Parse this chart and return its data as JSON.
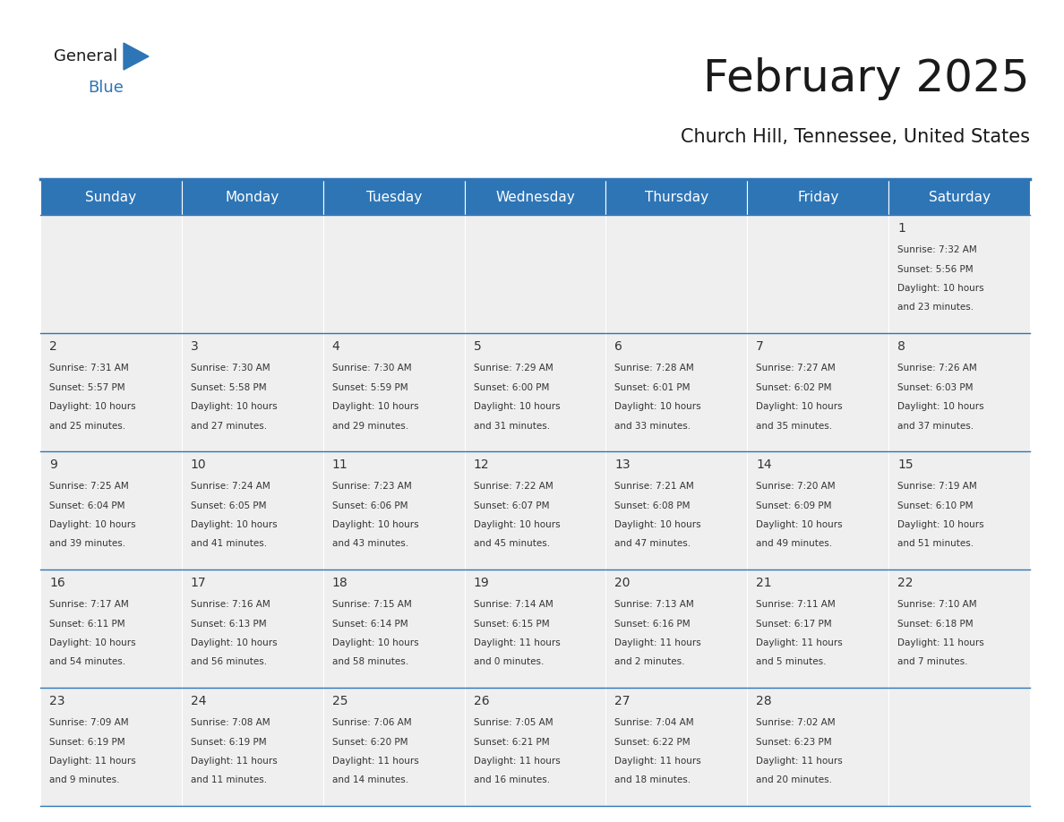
{
  "title": "February 2025",
  "subtitle": "Church Hill, Tennessee, United States",
  "header_color": "#2e75b6",
  "header_text_color": "#ffffff",
  "cell_bg_color": "#efefef",
  "border_color": "#2e75b6",
  "text_color": "#333333",
  "day_headers": [
    "Sunday",
    "Monday",
    "Tuesday",
    "Wednesday",
    "Thursday",
    "Friday",
    "Saturday"
  ],
  "title_color": "#1a1a1a",
  "subtitle_color": "#1a1a1a",
  "logo_general_color": "#1a1a1a",
  "logo_blue_color": "#2e75b6",
  "title_fontsize": 36,
  "subtitle_fontsize": 15,
  "header_fontsize": 11,
  "day_num_fontsize": 10,
  "info_fontsize": 7.5,
  "days": [
    {
      "day": 1,
      "col": 6,
      "row": 0,
      "sunrise": "7:32 AM",
      "sunset": "5:56 PM",
      "daylight_line1": "Daylight: 10 hours",
      "daylight_line2": "and 23 minutes."
    },
    {
      "day": 2,
      "col": 0,
      "row": 1,
      "sunrise": "7:31 AM",
      "sunset": "5:57 PM",
      "daylight_line1": "Daylight: 10 hours",
      "daylight_line2": "and 25 minutes."
    },
    {
      "day": 3,
      "col": 1,
      "row": 1,
      "sunrise": "7:30 AM",
      "sunset": "5:58 PM",
      "daylight_line1": "Daylight: 10 hours",
      "daylight_line2": "and 27 minutes."
    },
    {
      "day": 4,
      "col": 2,
      "row": 1,
      "sunrise": "7:30 AM",
      "sunset": "5:59 PM",
      "daylight_line1": "Daylight: 10 hours",
      "daylight_line2": "and 29 minutes."
    },
    {
      "day": 5,
      "col": 3,
      "row": 1,
      "sunrise": "7:29 AM",
      "sunset": "6:00 PM",
      "daylight_line1": "Daylight: 10 hours",
      "daylight_line2": "and 31 minutes."
    },
    {
      "day": 6,
      "col": 4,
      "row": 1,
      "sunrise": "7:28 AM",
      "sunset": "6:01 PM",
      "daylight_line1": "Daylight: 10 hours",
      "daylight_line2": "and 33 minutes."
    },
    {
      "day": 7,
      "col": 5,
      "row": 1,
      "sunrise": "7:27 AM",
      "sunset": "6:02 PM",
      "daylight_line1": "Daylight: 10 hours",
      "daylight_line2": "and 35 minutes."
    },
    {
      "day": 8,
      "col": 6,
      "row": 1,
      "sunrise": "7:26 AM",
      "sunset": "6:03 PM",
      "daylight_line1": "Daylight: 10 hours",
      "daylight_line2": "and 37 minutes."
    },
    {
      "day": 9,
      "col": 0,
      "row": 2,
      "sunrise": "7:25 AM",
      "sunset": "6:04 PM",
      "daylight_line1": "Daylight: 10 hours",
      "daylight_line2": "and 39 minutes."
    },
    {
      "day": 10,
      "col": 1,
      "row": 2,
      "sunrise": "7:24 AM",
      "sunset": "6:05 PM",
      "daylight_line1": "Daylight: 10 hours",
      "daylight_line2": "and 41 minutes."
    },
    {
      "day": 11,
      "col": 2,
      "row": 2,
      "sunrise": "7:23 AM",
      "sunset": "6:06 PM",
      "daylight_line1": "Daylight: 10 hours",
      "daylight_line2": "and 43 minutes."
    },
    {
      "day": 12,
      "col": 3,
      "row": 2,
      "sunrise": "7:22 AM",
      "sunset": "6:07 PM",
      "daylight_line1": "Daylight: 10 hours",
      "daylight_line2": "and 45 minutes."
    },
    {
      "day": 13,
      "col": 4,
      "row": 2,
      "sunrise": "7:21 AM",
      "sunset": "6:08 PM",
      "daylight_line1": "Daylight: 10 hours",
      "daylight_line2": "and 47 minutes."
    },
    {
      "day": 14,
      "col": 5,
      "row": 2,
      "sunrise": "7:20 AM",
      "sunset": "6:09 PM",
      "daylight_line1": "Daylight: 10 hours",
      "daylight_line2": "and 49 minutes."
    },
    {
      "day": 15,
      "col": 6,
      "row": 2,
      "sunrise": "7:19 AM",
      "sunset": "6:10 PM",
      "daylight_line1": "Daylight: 10 hours",
      "daylight_line2": "and 51 minutes."
    },
    {
      "day": 16,
      "col": 0,
      "row": 3,
      "sunrise": "7:17 AM",
      "sunset": "6:11 PM",
      "daylight_line1": "Daylight: 10 hours",
      "daylight_line2": "and 54 minutes."
    },
    {
      "day": 17,
      "col": 1,
      "row": 3,
      "sunrise": "7:16 AM",
      "sunset": "6:13 PM",
      "daylight_line1": "Daylight: 10 hours",
      "daylight_line2": "and 56 minutes."
    },
    {
      "day": 18,
      "col": 2,
      "row": 3,
      "sunrise": "7:15 AM",
      "sunset": "6:14 PM",
      "daylight_line1": "Daylight: 10 hours",
      "daylight_line2": "and 58 minutes."
    },
    {
      "day": 19,
      "col": 3,
      "row": 3,
      "sunrise": "7:14 AM",
      "sunset": "6:15 PM",
      "daylight_line1": "Daylight: 11 hours",
      "daylight_line2": "and 0 minutes."
    },
    {
      "day": 20,
      "col": 4,
      "row": 3,
      "sunrise": "7:13 AM",
      "sunset": "6:16 PM",
      "daylight_line1": "Daylight: 11 hours",
      "daylight_line2": "and 2 minutes."
    },
    {
      "day": 21,
      "col": 5,
      "row": 3,
      "sunrise": "7:11 AM",
      "sunset": "6:17 PM",
      "daylight_line1": "Daylight: 11 hours",
      "daylight_line2": "and 5 minutes."
    },
    {
      "day": 22,
      "col": 6,
      "row": 3,
      "sunrise": "7:10 AM",
      "sunset": "6:18 PM",
      "daylight_line1": "Daylight: 11 hours",
      "daylight_line2": "and 7 minutes."
    },
    {
      "day": 23,
      "col": 0,
      "row": 4,
      "sunrise": "7:09 AM",
      "sunset": "6:19 PM",
      "daylight_line1": "Daylight: 11 hours",
      "daylight_line2": "and 9 minutes."
    },
    {
      "day": 24,
      "col": 1,
      "row": 4,
      "sunrise": "7:08 AM",
      "sunset": "6:19 PM",
      "daylight_line1": "Daylight: 11 hours",
      "daylight_line2": "and 11 minutes."
    },
    {
      "day": 25,
      "col": 2,
      "row": 4,
      "sunrise": "7:06 AM",
      "sunset": "6:20 PM",
      "daylight_line1": "Daylight: 11 hours",
      "daylight_line2": "and 14 minutes."
    },
    {
      "day": 26,
      "col": 3,
      "row": 4,
      "sunrise": "7:05 AM",
      "sunset": "6:21 PM",
      "daylight_line1": "Daylight: 11 hours",
      "daylight_line2": "and 16 minutes."
    },
    {
      "day": 27,
      "col": 4,
      "row": 4,
      "sunrise": "7:04 AM",
      "sunset": "6:22 PM",
      "daylight_line1": "Daylight: 11 hours",
      "daylight_line2": "and 18 minutes."
    },
    {
      "day": 28,
      "col": 5,
      "row": 4,
      "sunrise": "7:02 AM",
      "sunset": "6:23 PM",
      "daylight_line1": "Daylight: 11 hours",
      "daylight_line2": "and 20 minutes."
    }
  ]
}
